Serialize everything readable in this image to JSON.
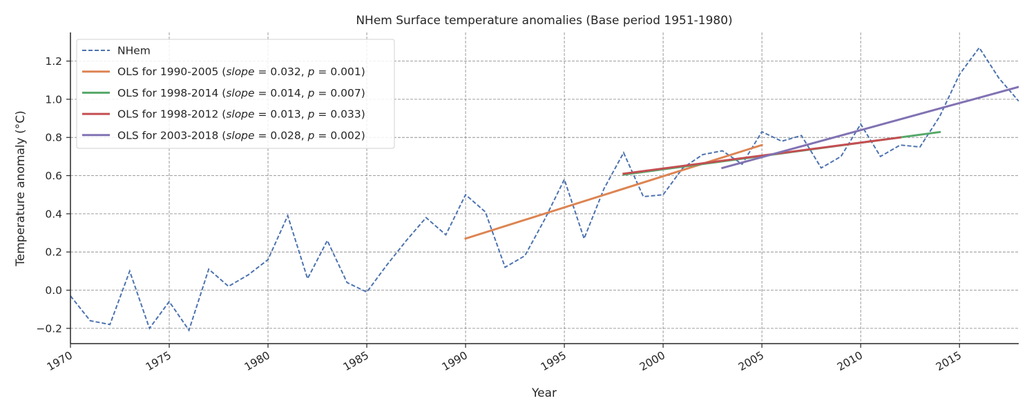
{
  "chart_data": {
    "type": "line",
    "title": "NHem Surface temperature anomalies (Base period 1951-1980)",
    "xlabel": "Year",
    "ylabel": "Temperature anomaly (°C)",
    "xlim": [
      1970,
      2018
    ],
    "ylim": [
      -0.28,
      1.35
    ],
    "xticks": [
      1970,
      1975,
      1980,
      1985,
      1990,
      1995,
      2000,
      2005,
      2010,
      2015
    ],
    "yticks": [
      -0.2,
      0.0,
      0.2,
      0.4,
      0.6,
      0.8,
      1.0,
      1.2
    ],
    "ytick_labels": [
      "−0.2",
      "0.0",
      "0.2",
      "0.4",
      "0.6",
      "0.8",
      "1.0",
      "1.2"
    ],
    "grid": true,
    "legend_position": "top-left",
    "colors": {
      "nhem": "#4c72b0",
      "ols_1990_2005": "#dd8452",
      "ols_1998_2014": "#55a868",
      "ols_1998_2012": "#c44e52",
      "ols_2003_2018": "#8172b3"
    },
    "series": [
      {
        "name": "NHem",
        "style": "dashed",
        "x": [
          1970,
          1971,
          1972,
          1973,
          1974,
          1975,
          1976,
          1977,
          1978,
          1979,
          1980,
          1981,
          1982,
          1983,
          1984,
          1985,
          1986,
          1987,
          1988,
          1989,
          1990,
          1991,
          1992,
          1993,
          1994,
          1995,
          1996,
          1997,
          1998,
          1999,
          2000,
          2001,
          2002,
          2003,
          2004,
          2005,
          2006,
          2007,
          2008,
          2009,
          2010,
          2011,
          2012,
          2013,
          2014,
          2015,
          2016,
          2017,
          2018
        ],
        "y": [
          -0.03,
          -0.16,
          -0.18,
          0.1,
          -0.2,
          -0.06,
          -0.21,
          0.11,
          0.02,
          0.08,
          0.16,
          0.39,
          0.06,
          0.26,
          0.04,
          -0.01,
          0.13,
          0.26,
          0.38,
          0.29,
          0.5,
          0.41,
          0.12,
          0.18,
          0.37,
          0.58,
          0.27,
          0.53,
          0.72,
          0.49,
          0.5,
          0.64,
          0.71,
          0.73,
          0.66,
          0.83,
          0.78,
          0.81,
          0.64,
          0.7,
          0.87,
          0.7,
          0.76,
          0.75,
          0.91,
          1.13,
          1.27,
          1.11,
          0.99
        ]
      },
      {
        "name": "OLS for 1990-2005",
        "label_prefix": "OLS for 1990-2005 (",
        "slope": "0.032",
        "p": "0.001",
        "style": "solid",
        "x": [
          1990,
          2005
        ],
        "y": [
          0.27,
          0.76
        ]
      },
      {
        "name": "OLS for 1998-2014",
        "label_prefix": "OLS for 1998-2014 (",
        "slope": "0.014",
        "p": "0.007",
        "style": "solid",
        "x": [
          1998,
          2014
        ],
        "y": [
          0.605,
          0.828
        ]
      },
      {
        "name": "OLS for 1998-2012",
        "label_prefix": "OLS for 1998-2012 (",
        "slope": "0.013",
        "p": "0.033",
        "style": "solid",
        "x": [
          1998,
          2012
        ],
        "y": [
          0.61,
          0.8
        ]
      },
      {
        "name": "OLS for 2003-2018",
        "label_prefix": "OLS for 2003-2018 (",
        "slope": "0.028",
        "p": "0.002",
        "style": "solid",
        "x": [
          2003,
          2018
        ],
        "y": [
          0.64,
          1.065
        ]
      }
    ]
  }
}
